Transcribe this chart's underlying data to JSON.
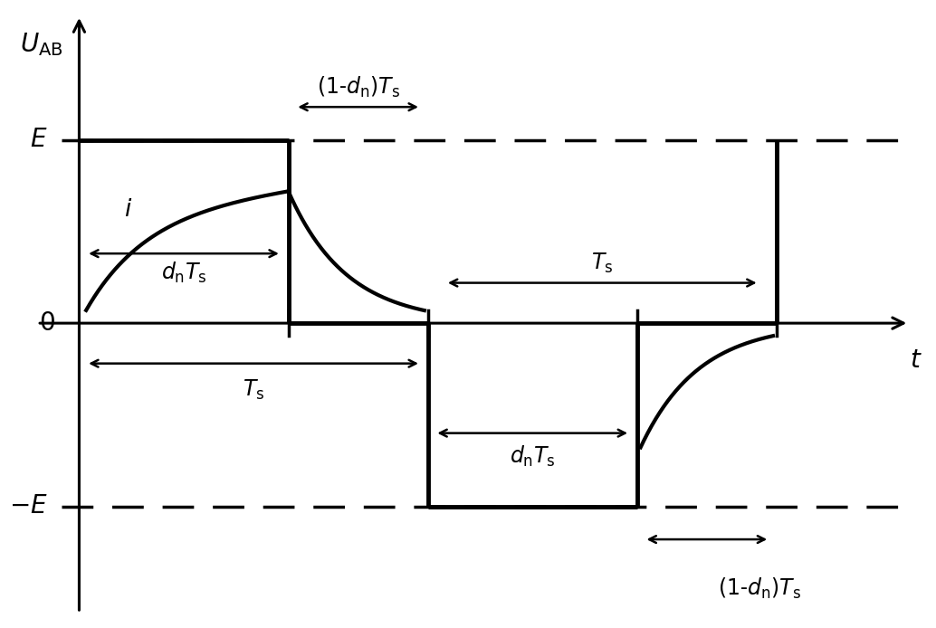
{
  "bg_color": "#ffffff",
  "line_color": "#000000",
  "E_level": 1.0,
  "d_n": 0.6,
  "T_s": 1.0,
  "xlim": [
    -0.18,
    2.45
  ],
  "ylim": [
    -1.65,
    1.75
  ],
  "ylabel_text": "$U_{\\mathrm{AB}}$",
  "xlabel_text": "$t$",
  "E_label": "$E$",
  "neg_E_label": "$-E$",
  "zero_label": "$0$",
  "T_s_label_1": "$T_{\\mathrm{s}}$",
  "T_s_label_2": "$T_{\\mathrm{s}}$",
  "d_n_Ts_label_1": "$d_{\\mathrm{n}}T_{\\mathrm{s}}$",
  "d_n_Ts_label_2": "$d_{\\mathrm{n}}T_{\\mathrm{s}}$",
  "one_minus_dn_Ts_label_1": "$(1$-$d_{\\mathrm{n}})T_{\\mathrm{s}}$",
  "one_minus_dn_Ts_label_2": "$(1$-$d_{\\mathrm{n}})T_{\\mathrm{s}}$",
  "i_label": "$i$",
  "lw_main": 2.2,
  "lw_signal": 3.5,
  "lw_dashed": 2.5,
  "lw_arrow": 1.8,
  "font_size_axis_label": 20,
  "font_size_annot": 17,
  "axis_origin_x": 0.0,
  "axis_origin_y": 0.0
}
